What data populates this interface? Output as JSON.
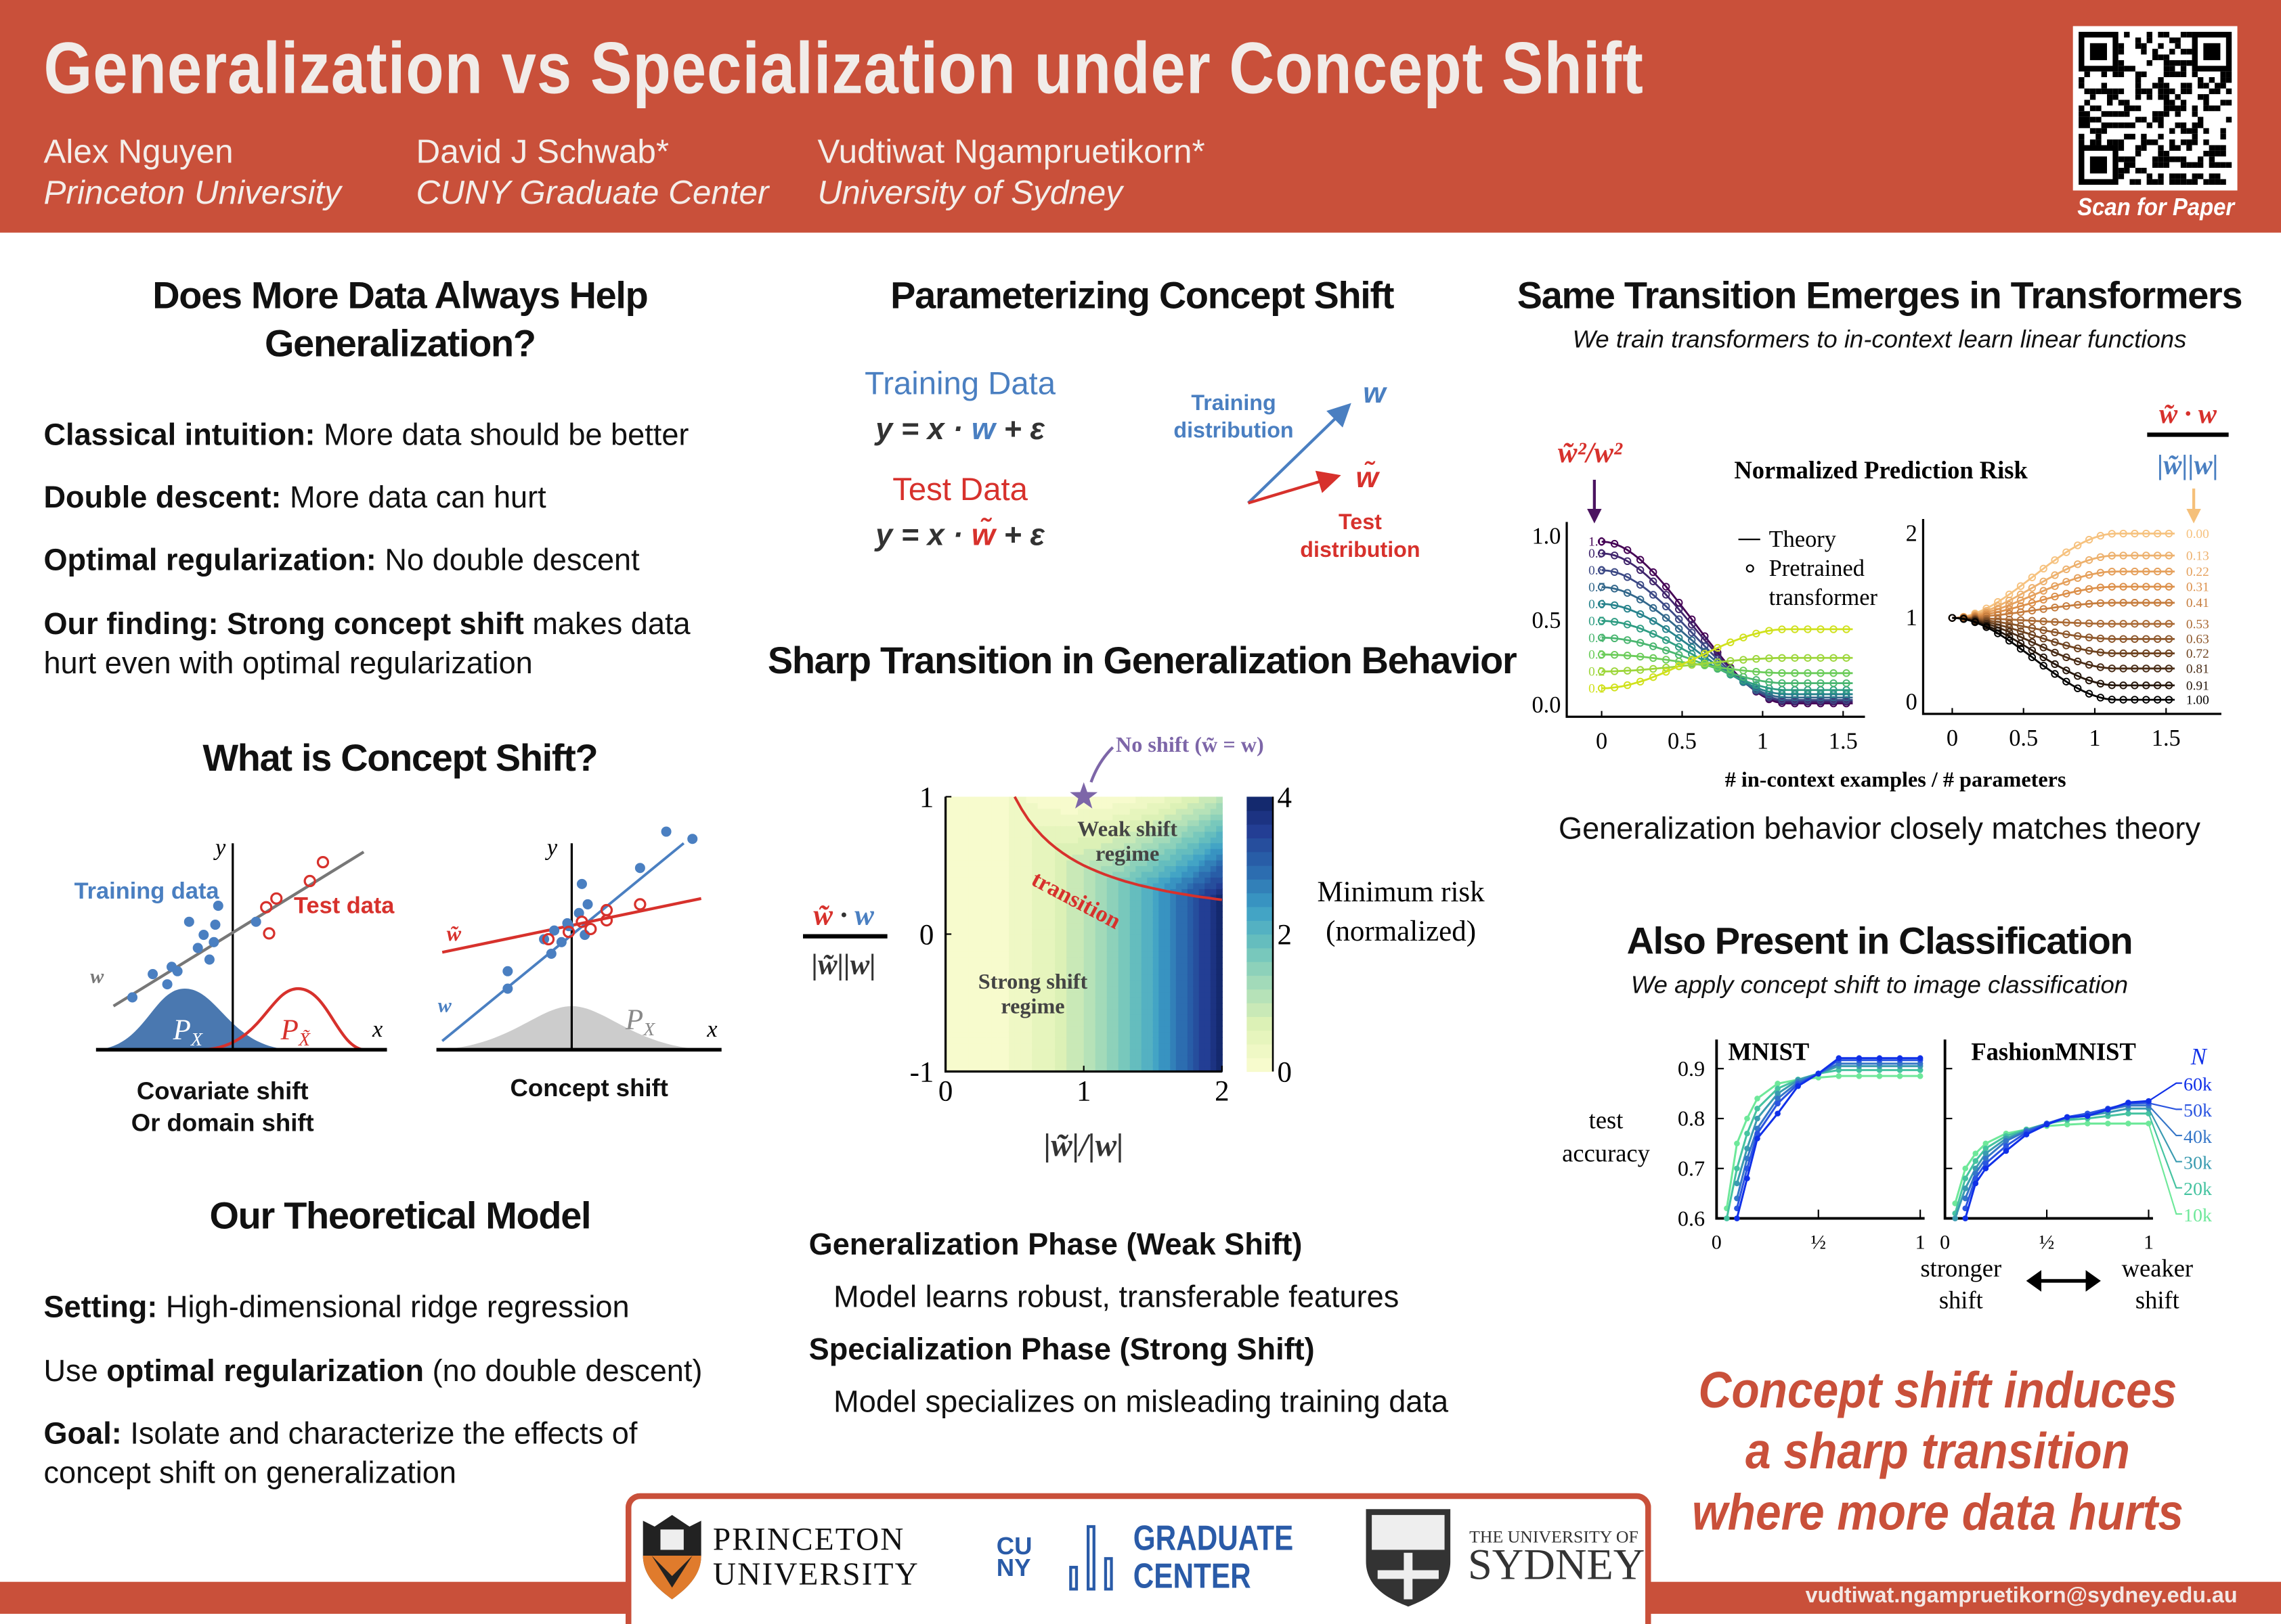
{
  "header": {
    "title": "Generalization vs Specialization under Concept Shift",
    "authors": [
      {
        "name": "Alex Nguyen",
        "affiliation": "Princeton University"
      },
      {
        "name": "David J Schwab*",
        "affiliation": "CUNY Graduate Center"
      },
      {
        "name": "Vudtiwat Ngampruetikorn*",
        "affiliation": "University of Sydney"
      }
    ],
    "qr_label": "Scan for Paper"
  },
  "left": {
    "title1": "Does More Data Always Help",
    "title2": "Generalization?",
    "bullets": [
      {
        "bold": "Classical intuition:",
        "text": " More data should be better"
      },
      {
        "bold": "Double descent:",
        "text": " More data can hurt"
      },
      {
        "bold": "Optimal regularization:",
        "text": " No double descent"
      },
      {
        "bold": "Our finding: Strong concept shift",
        "text": " makes data",
        "line2": "hurt even with optimal regularization"
      }
    ],
    "concept_title": "What is Concept Shift?",
    "diagram1": {
      "training": "Training data",
      "test": "Test data",
      "w": "w",
      "x": "x",
      "y": "y",
      "px": "P",
      "px_sub": "X",
      "ptx": "P",
      "ptx_sub": "X̃",
      "caption1": "Covariate shift",
      "caption2": "Or domain shift"
    },
    "diagram2": {
      "wt": "w̃",
      "w": "w",
      "x": "x",
      "y": "y",
      "px": "P",
      "px_sub": "X",
      "caption": "Concept shift"
    },
    "model_title": "Our Theoretical Model",
    "model": [
      {
        "bold": "Setting:",
        "text": " High-dimensional ridge regression"
      },
      {
        "pre": "Use ",
        "bold": "optimal regularization",
        "text": " (no double descent)"
      },
      {
        "bold": "Goal:",
        "text": " Isolate and characterize the effects of",
        "line2": "concept shift on generalization"
      }
    ]
  },
  "middle": {
    "title": "Parameterizing Concept Shift",
    "training_label": "Training Data",
    "training_eq": {
      "a": "y = x · ",
      "w": "w",
      "b": " + ε"
    },
    "test_label": "Test Data",
    "test_eq": {
      "a": "y = x · ",
      "w": "w̃",
      "b": " + ε"
    },
    "vec_training": "Training\ndistribution",
    "vec_training1": "Training",
    "vec_training2": "distribution",
    "vec_test1": "Test",
    "vec_test2": "distribution",
    "vec_w": "w",
    "vec_wt": "w̃",
    "transition_title": "Sharp Transition in Generalization Behavior",
    "phases": [
      {
        "title": "Generalization Phase (Weak Shift)",
        "desc": "Model learns robust, transferable features"
      },
      {
        "title": "Specialization Phase (Strong Shift)",
        "desc": "Model specializes on misleading training data"
      }
    ]
  },
  "right": {
    "title": "Same Transition Emerges in Transformers",
    "subtitle": "We train transformers to in-context learn linear functions",
    "match": "Generalization behavior closely matches theory",
    "class_title": "Also Present in Classification",
    "class_subtitle": "We apply concept shift to image classification",
    "conclusion": [
      "Concept shift induces",
      "a sharp transition",
      "where more data hurts"
    ]
  },
  "footer": {
    "princeton1": "PRINCETON",
    "princeton2": "UNIVERSITY",
    "cuny1": "CU",
    "cuny2": "NY",
    "gc1": "GRADUATE",
    "gc2": "CENTER",
    "sydney1": "THE UNIVERSITY OF",
    "sydney2": "SYDNEY",
    "email": "vudtiwat.ngampruetikorn@sydney.edu.au"
  },
  "colors": {
    "header": "#c9503a",
    "blue": "#4a7fc1",
    "red": "#d7312c",
    "purple": "#7d66a8"
  },
  "chart_data": [
    {
      "type": "heatmap",
      "title": "Minimum risk (normalized)",
      "colorbar_label1": "Minimum risk",
      "colorbar_label2": "(normalized)",
      "xlabel": "|w̃|/|w|",
      "ylabel_num": "w̃ · w",
      "ylabel_den": "|w̃||w|",
      "xlim": [
        0,
        2
      ],
      "ylim": [
        -1,
        1
      ],
      "zlim": [
        0,
        4
      ],
      "xticks": [
        "0",
        "1",
        "2"
      ],
      "yticks": [
        "-1",
        "0",
        "1"
      ],
      "cticks": [
        "0",
        "2",
        "4"
      ],
      "annotations": {
        "no_shift": "No shift (w̃ = w)",
        "weak": "Weak shift",
        "weak2": "regime",
        "strong": "Strong shift",
        "strong2": "regime",
        "transition": "transition"
      },
      "no_shift_point": [
        1,
        1
      ]
    },
    {
      "type": "line",
      "title": "Normalized Prediction Risk",
      "xlabel": "# in-context examples / # parameters",
      "legend": [
        "Theory",
        "Pretrained",
        "transformer"
      ],
      "left_param_label": "w̃²/w²",
      "right_param_label_num": "w̃ · w",
      "right_param_label_den": "|w̃||w|",
      "left": {
        "xlim": [
          -0.1,
          1.6
        ],
        "ylim": [
          0,
          1.05
        ],
        "xticks": [
          "0",
          "0.5",
          "1",
          "1.5"
        ],
        "yticks": [
          "0.0",
          "0.5",
          "1.0"
        ],
        "series": [
          {
            "name": "1.0",
            "start": 0.97,
            "end": 0.01
          },
          {
            "name": "0.9",
            "start": 0.9,
            "end": 0.02
          },
          {
            "name": "0.8",
            "start": 0.8,
            "end": 0.03
          },
          {
            "name": "0.7",
            "start": 0.7,
            "end": 0.045
          },
          {
            "name": "0.6",
            "start": 0.6,
            "end": 0.065
          },
          {
            "name": "0.5",
            "start": 0.5,
            "end": 0.09
          },
          {
            "name": "0.4",
            "start": 0.4,
            "end": 0.13
          },
          {
            "name": "0.3",
            "start": 0.3,
            "end": 0.19
          },
          {
            "name": "0.2",
            "start": 0.2,
            "end": 0.28
          },
          {
            "name": "0.1",
            "start": 0.1,
            "end": 0.45
          }
        ]
      },
      "right": {
        "xlim": [
          -0.1,
          1.85
        ],
        "ylim": [
          0,
          2.1
        ],
        "xticks": [
          "0",
          "0.5",
          "1",
          "1.5"
        ],
        "yticks": [
          "0",
          "1",
          "2"
        ],
        "series": [
          {
            "name": "0.00",
            "end": 2.0
          },
          {
            "name": "0.13",
            "end": 1.74
          },
          {
            "name": "0.22",
            "end": 1.55
          },
          {
            "name": "0.31",
            "end": 1.37
          },
          {
            "name": "0.41",
            "end": 1.18
          },
          {
            "name": "0.53",
            "end": 0.93
          },
          {
            "name": "0.63",
            "end": 0.75
          },
          {
            "name": "0.72",
            "end": 0.58
          },
          {
            "name": "0.81",
            "end": 0.4
          },
          {
            "name": "0.91",
            "end": 0.2
          },
          {
            "name": "1.00",
            "end": 0.03
          }
        ]
      }
    },
    {
      "type": "line",
      "ylabel1": "test",
      "ylabel2": "accuracy",
      "xlabel_left": "stronger",
      "xlabel_left2": "shift",
      "xlabel_right": "weaker",
      "xlabel_right2": "shift",
      "legend_title": "N",
      "ylim": [
        0.6,
        0.93
      ],
      "yticks": [
        "0.6",
        "0.7",
        "0.8",
        "0.9"
      ],
      "xticks": [
        "0",
        "½",
        "1"
      ],
      "x": [
        0.05,
        0.1,
        0.15,
        0.2,
        0.3,
        0.4,
        0.5,
        0.6,
        0.7,
        0.8,
        0.9,
        1.0
      ],
      "panels": [
        {
          "title": "MNIST",
          "series": [
            {
              "name": "10k",
              "values": [
                0.62,
                0.75,
                0.8,
                0.84,
                0.87,
                0.878,
                0.882,
                0.885,
                0.885,
                0.885,
                0.885,
                0.885
              ]
            },
            {
              "name": "20k",
              "values": [
                0.6,
                0.7,
                0.77,
                0.82,
                0.86,
                0.878,
                0.89,
                0.897,
                0.897,
                0.897,
                0.897,
                0.897
              ]
            },
            {
              "name": "30k",
              "values": [
                0.58,
                0.67,
                0.74,
                0.8,
                0.85,
                0.877,
                0.89,
                0.905,
                0.905,
                0.905,
                0.905,
                0.905
              ]
            },
            {
              "name": "40k",
              "values": [
                0.56,
                0.64,
                0.72,
                0.78,
                0.84,
                0.873,
                0.89,
                0.91,
                0.91,
                0.91,
                0.91,
                0.91
              ]
            },
            {
              "name": "50k",
              "values": [
                0.55,
                0.62,
                0.7,
                0.77,
                0.83,
                0.869,
                0.89,
                0.917,
                0.917,
                0.917,
                0.917,
                0.917
              ]
            },
            {
              "name": "60k",
              "values": [
                0.54,
                0.6,
                0.68,
                0.76,
                0.81,
                0.865,
                0.89,
                0.921,
                0.921,
                0.921,
                0.921,
                0.921
              ]
            }
          ]
        },
        {
          "title": "FashionMNIST",
          "series": [
            {
              "name": "10k",
              "values": [
                0.63,
                0.7,
                0.73,
                0.75,
                0.77,
                0.778,
                0.785,
                0.788,
                0.79,
                0.79,
                0.79,
                0.79
              ]
            },
            {
              "name": "20k",
              "values": [
                0.61,
                0.68,
                0.715,
                0.74,
                0.765,
                0.778,
                0.79,
                0.797,
                0.8,
                0.805,
                0.81,
                0.81
              ]
            },
            {
              "name": "30k",
              "values": [
                0.6,
                0.66,
                0.7,
                0.73,
                0.76,
                0.776,
                0.79,
                0.8,
                0.806,
                0.812,
                0.82,
                0.82
              ]
            },
            {
              "name": "40k",
              "values": [
                0.58,
                0.64,
                0.69,
                0.72,
                0.755,
                0.775,
                0.79,
                0.802,
                0.81,
                0.818,
                0.826,
                0.826
              ]
            },
            {
              "name": "50k",
              "values": [
                0.57,
                0.62,
                0.68,
                0.71,
                0.745,
                0.772,
                0.79,
                0.803,
                0.81,
                0.82,
                0.83,
                0.831
              ]
            },
            {
              "name": "60k",
              "values": [
                0.56,
                0.6,
                0.67,
                0.7,
                0.735,
                0.768,
                0.788,
                0.803,
                0.805,
                0.818,
                0.832,
                0.835
              ]
            }
          ]
        }
      ]
    }
  ]
}
